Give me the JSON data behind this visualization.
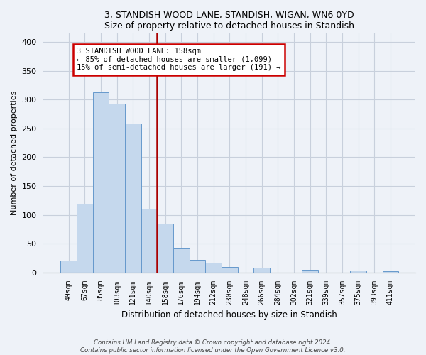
{
  "title1": "3, STANDISH WOOD LANE, STANDISH, WIGAN, WN6 0YD",
  "title2": "Size of property relative to detached houses in Standish",
  "xlabel": "Distribution of detached houses by size in Standish",
  "ylabel": "Number of detached properties",
  "bar_color": "#c5d8ed",
  "bar_edge_color": "#6699cc",
  "categories": [
    "49sqm",
    "67sqm",
    "85sqm",
    "103sqm",
    "121sqm",
    "140sqm",
    "158sqm",
    "176sqm",
    "194sqm",
    "212sqm",
    "230sqm",
    "248sqm",
    "266sqm",
    "284sqm",
    "302sqm",
    "321sqm",
    "339sqm",
    "357sqm",
    "375sqm",
    "393sqm",
    "411sqm"
  ],
  "values": [
    20,
    119,
    313,
    293,
    259,
    110,
    85,
    43,
    22,
    17,
    9,
    0,
    8,
    0,
    0,
    5,
    0,
    0,
    3,
    0,
    2
  ],
  "highlight_index": 6,
  "highlight_color": "#aa0000",
  "annotation_title": "3 STANDISH WOOD LANE: 158sqm",
  "annotation_line1": "← 85% of detached houses are smaller (1,099)",
  "annotation_line2": "15% of semi-detached houses are larger (191) →",
  "annotation_box_color": "#ffffff",
  "annotation_box_edge": "#cc0000",
  "footer1": "Contains HM Land Registry data © Crown copyright and database right 2024.",
  "footer2": "Contains public sector information licensed under the Open Government Licence v3.0.",
  "ylim": [
    0,
    415
  ],
  "yticks": [
    0,
    50,
    100,
    150,
    200,
    250,
    300,
    350,
    400
  ],
  "background_color": "#eef2f8"
}
